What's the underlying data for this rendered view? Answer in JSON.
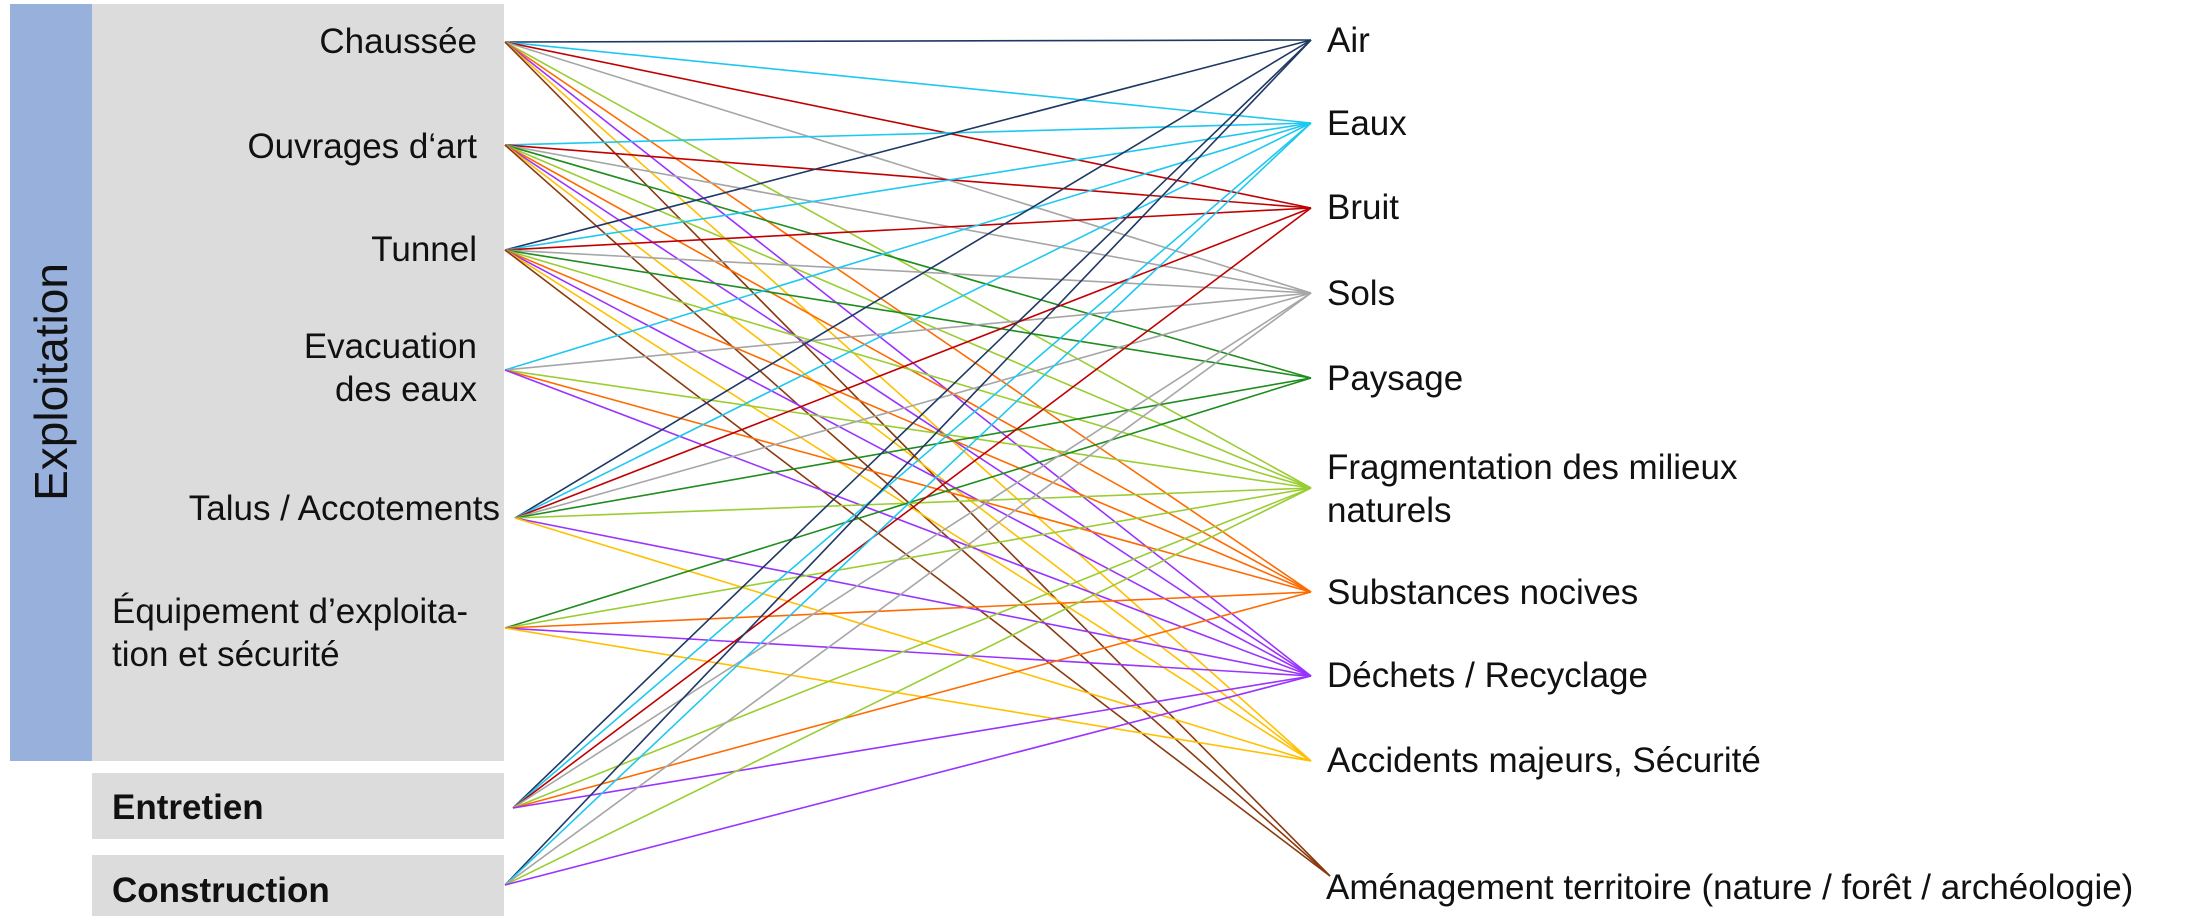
{
  "side_label": "Exploitation",
  "sources": [
    {
      "id": "chaussee",
      "text": "Chaussée"
    },
    {
      "id": "ouvrages",
      "text": "Ouvrages d‘art"
    },
    {
      "id": "tunnel",
      "text": "Tunnel"
    },
    {
      "id": "evacuation",
      "lines": [
        "Evacuation",
        "des eaux"
      ]
    },
    {
      "id": "talus",
      "text": "Talus / Accotements"
    },
    {
      "id": "equipement",
      "lines": [
        "Équipement d’exploita-",
        "tion et sécurité"
      ]
    },
    {
      "id": "entretien",
      "text": "Entretien"
    },
    {
      "id": "construction",
      "text": "Construction"
    }
  ],
  "targets": [
    {
      "id": "air",
      "text": "Air"
    },
    {
      "id": "eaux",
      "text": "Eaux"
    },
    {
      "id": "bruit",
      "text": "Bruit"
    },
    {
      "id": "sols",
      "text": "Sols"
    },
    {
      "id": "paysage",
      "text": "Paysage"
    },
    {
      "id": "fragmentation",
      "lines": [
        "Fragmentation des milieux",
        "naturels"
      ]
    },
    {
      "id": "substances",
      "text": "Substances nocives"
    },
    {
      "id": "dechets",
      "text": "Déchets / Recyclage"
    },
    {
      "id": "accidents",
      "text": "Accidents majeurs, Sécurité"
    },
    {
      "id": "amenagement",
      "text": "Aménagement territoire (nature / forêt / archéologie)"
    }
  ],
  "colors": {
    "side_band": "#98b0dc",
    "panel": "#dcdcdc",
    "air": "#1f3864",
    "eaux": "#1ec8f0",
    "bruit": "#c00000",
    "sols": "#a6a6a6",
    "paysage": "#1e8c1e",
    "fragmentation": "#9acd32",
    "substances": "#ff6a00",
    "dechets": "#9933ff",
    "accidents": "#ffc000",
    "amenagement": "#8b3a0e"
  },
  "links": [
    {
      "from": "chaussee",
      "to": "air",
      "color": "#1f3864"
    },
    {
      "from": "chaussee",
      "to": "eaux",
      "color": "#1ec8f0"
    },
    {
      "from": "chaussee",
      "to": "bruit",
      "color": "#c00000"
    },
    {
      "from": "chaussee",
      "to": "sols",
      "color": "#a6a6a6"
    },
    {
      "from": "chaussee",
      "to": "fragmentation",
      "color": "#9acd32"
    },
    {
      "from": "chaussee",
      "to": "substances",
      "color": "#ff6a00"
    },
    {
      "from": "chaussee",
      "to": "dechets",
      "color": "#9933ff"
    },
    {
      "from": "chaussee",
      "to": "accidents",
      "color": "#ffc000"
    },
    {
      "from": "chaussee",
      "to": "amenagement",
      "color": "#8b3a0e"
    },
    {
      "from": "ouvrages",
      "to": "eaux",
      "color": "#1ec8f0"
    },
    {
      "from": "ouvrages",
      "to": "bruit",
      "color": "#c00000"
    },
    {
      "from": "ouvrages",
      "to": "sols",
      "color": "#a6a6a6"
    },
    {
      "from": "ouvrages",
      "to": "paysage",
      "color": "#1e8c1e"
    },
    {
      "from": "ouvrages",
      "to": "fragmentation",
      "color": "#9acd32"
    },
    {
      "from": "ouvrages",
      "to": "substances",
      "color": "#ff6a00"
    },
    {
      "from": "ouvrages",
      "to": "dechets",
      "color": "#9933ff"
    },
    {
      "from": "ouvrages",
      "to": "accidents",
      "color": "#ffc000"
    },
    {
      "from": "ouvrages",
      "to": "amenagement",
      "color": "#8b3a0e"
    },
    {
      "from": "tunnel",
      "to": "air",
      "color": "#1f3864"
    },
    {
      "from": "tunnel",
      "to": "eaux",
      "color": "#1ec8f0"
    },
    {
      "from": "tunnel",
      "to": "bruit",
      "color": "#c00000"
    },
    {
      "from": "tunnel",
      "to": "sols",
      "color": "#a6a6a6"
    },
    {
      "from": "tunnel",
      "to": "paysage",
      "color": "#1e8c1e"
    },
    {
      "from": "tunnel",
      "to": "fragmentation",
      "color": "#9acd32"
    },
    {
      "from": "tunnel",
      "to": "substances",
      "color": "#ff6a00"
    },
    {
      "from": "tunnel",
      "to": "dechets",
      "color": "#9933ff"
    },
    {
      "from": "tunnel",
      "to": "accidents",
      "color": "#ffc000"
    },
    {
      "from": "tunnel",
      "to": "amenagement",
      "color": "#8b3a0e"
    },
    {
      "from": "evacuation",
      "to": "eaux",
      "color": "#1ec8f0"
    },
    {
      "from": "evacuation",
      "to": "sols",
      "color": "#a6a6a6"
    },
    {
      "from": "evacuation",
      "to": "fragmentation",
      "color": "#9acd32"
    },
    {
      "from": "evacuation",
      "to": "substances",
      "color": "#ff6a00"
    },
    {
      "from": "evacuation",
      "to": "dechets",
      "color": "#9933ff"
    },
    {
      "from": "talus",
      "to": "air",
      "color": "#1f3864"
    },
    {
      "from": "talus",
      "to": "eaux",
      "color": "#1ec8f0"
    },
    {
      "from": "talus",
      "to": "bruit",
      "color": "#c00000"
    },
    {
      "from": "talus",
      "to": "sols",
      "color": "#a6a6a6"
    },
    {
      "from": "talus",
      "to": "paysage",
      "color": "#1e8c1e"
    },
    {
      "from": "talus",
      "to": "fragmentation",
      "color": "#9acd32"
    },
    {
      "from": "talus",
      "to": "dechets",
      "color": "#9933ff"
    },
    {
      "from": "talus",
      "to": "accidents",
      "color": "#ffc000"
    },
    {
      "from": "equipement",
      "to": "paysage",
      "color": "#1e8c1e"
    },
    {
      "from": "equipement",
      "to": "fragmentation",
      "color": "#9acd32"
    },
    {
      "from": "equipement",
      "to": "substances",
      "color": "#ff6a00"
    },
    {
      "from": "equipement",
      "to": "dechets",
      "color": "#9933ff"
    },
    {
      "from": "equipement",
      "to": "accidents",
      "color": "#ffc000"
    },
    {
      "from": "entretien",
      "to": "air",
      "color": "#1f3864"
    },
    {
      "from": "entretien",
      "to": "eaux",
      "color": "#1ec8f0"
    },
    {
      "from": "entretien",
      "to": "bruit",
      "color": "#c00000"
    },
    {
      "from": "entretien",
      "to": "sols",
      "color": "#a6a6a6"
    },
    {
      "from": "entretien",
      "to": "fragmentation",
      "color": "#9acd32"
    },
    {
      "from": "entretien",
      "to": "substances",
      "color": "#ff6a00"
    },
    {
      "from": "entretien",
      "to": "dechets",
      "color": "#9933ff"
    },
    {
      "from": "construction",
      "to": "air",
      "color": "#1f3864"
    },
    {
      "from": "construction",
      "to": "eaux",
      "color": "#1ec8f0"
    },
    {
      "from": "construction",
      "to": "sols",
      "color": "#a6a6a6"
    },
    {
      "from": "construction",
      "to": "fragmentation",
      "color": "#9acd32"
    },
    {
      "from": "construction",
      "to": "dechets",
      "color": "#9933ff"
    }
  ]
}
